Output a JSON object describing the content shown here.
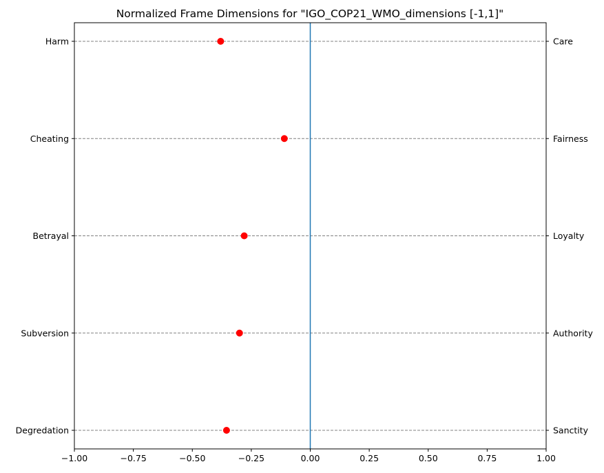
{
  "chart_data": {
    "type": "scatter",
    "title": "Normalized Frame Dimensions for \"IGO_COP21_WMO_dimensions [-1,1]\"",
    "xlim": [
      -1,
      1
    ],
    "x_ticks": [
      -1.0,
      -0.75,
      -0.5,
      -0.25,
      0.0,
      0.25,
      0.5,
      0.75,
      1.0
    ],
    "x_tick_labels": [
      "−1.00",
      "−0.75",
      "−0.50",
      "−0.25",
      "0.00",
      "0.25",
      "0.50",
      "0.75",
      "1.00"
    ],
    "left_labels": [
      "Harm",
      "Cheating",
      "Betrayal",
      "Subversion",
      "Degredation"
    ],
    "right_labels": [
      "Care",
      "Fairness",
      "Loyalty",
      "Authority",
      "Sanctity"
    ],
    "values": [
      -0.38,
      -0.11,
      -0.28,
      -0.3,
      -0.355
    ],
    "reference_line_x": 0,
    "grid": "horizontal dashed",
    "colors": {
      "marker": "#ff0000",
      "reference_line": "#1f77b4",
      "grid": "#808080",
      "axis": "#000000"
    }
  }
}
